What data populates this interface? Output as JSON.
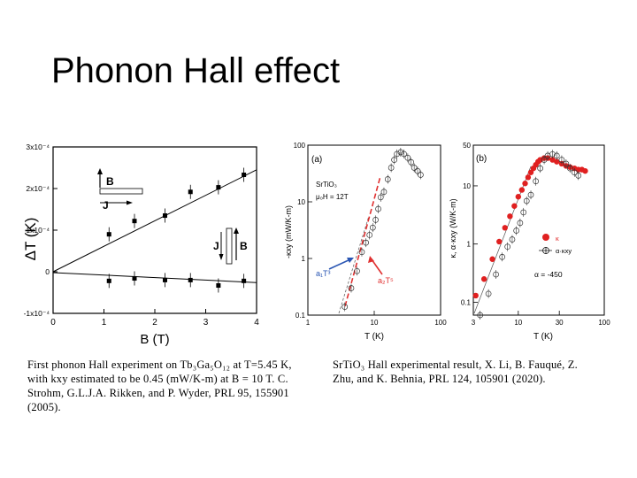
{
  "slide": {
    "title": "Phonon Hall effect"
  },
  "chart_data": [
    {
      "type": "scatter",
      "xlabel": "B  (T)",
      "ylabel": "ΔT  (K)",
      "xlim": [
        0,
        4
      ],
      "ylim": [
        -0.0001,
        0.0003
      ],
      "xticks": [
        "0",
        "1",
        "2",
        "3",
        "4"
      ],
      "yticks": [
        "-1x10⁻⁴",
        "0",
        "1x10⁻⁴",
        "2x10⁻⁴",
        "3x10⁻⁴"
      ],
      "series": [
        {
          "values_x": [
            1.1,
            1.6,
            2.2,
            2.7,
            3.25,
            3.75
          ],
          "values_y": [
            9e-05,
            0.000122,
            0.000135,
            0.000192,
            0.000203,
            0.000233
          ]
        },
        {
          "values_x": [
            1.1,
            1.6,
            2.2,
            2.7,
            3.25,
            3.75
          ],
          "values_y": [
            -2.2e-05,
            -1.6e-05,
            -2e-05,
            -2e-05,
            -3.3e-05,
            -2.2e-05
          ]
        }
      ],
      "fit_lines": [
        {
          "y_at_0": 0.0,
          "y_at_4": 0.000245
        },
        {
          "y_at_0": -2e-06,
          "y_at_4": -2.6e-05
        }
      ],
      "inset_labels": {
        "b_label": "B",
        "j_label": "J"
      }
    },
    {
      "type": "scatter",
      "panel_label": "(a)",
      "xlabel": "T (K)",
      "ylabel": "-κxy (mW/K-m)",
      "xscale": "log",
      "yscale": "log",
      "xlim": [
        1,
        100
      ],
      "ylim": [
        0.1,
        100
      ],
      "xticks": [
        "1",
        "10",
        "100"
      ],
      "yticks": [
        "0.1",
        "1",
        "10",
        "100"
      ],
      "legend": {
        "line1": "SrTiO₃",
        "line2": "μ₀H = 12T",
        "annot_left": "a₁T³",
        "annot_right": "a₂T⁵"
      },
      "series": [
        {
          "x": [
            3.6,
            4.5,
            5.5,
            6.5,
            7.5,
            8.5,
            9.5,
            10.5,
            11.5,
            12.5,
            14,
            16,
            18,
            20,
            22,
            25,
            28,
            32,
            36,
            40,
            45,
            50
          ],
          "y": [
            0.14,
            0.3,
            0.6,
            1.3,
            1.9,
            2.6,
            3.5,
            4.8,
            7.5,
            12,
            15,
            25,
            40,
            55,
            70,
            75,
            70,
            60,
            50,
            40,
            35,
            30
          ]
        }
      ]
    },
    {
      "type": "scatter",
      "panel_label": "(b)",
      "xlabel": "T (K)",
      "ylabel": "κ, α·κxy (W/K-m)",
      "xscale": "log",
      "yscale": "log",
      "xlim": [
        3,
        100
      ],
      "ylim": [
        0.06,
        50
      ],
      "xticks": [
        "3",
        "10",
        "30",
        "100"
      ],
      "yticks": [
        "0.1",
        "1",
        "10",
        "50"
      ],
      "legend": {
        "kappa": "κ",
        "alpha_kxy": "α·κxy",
        "alpha": "α = -450"
      },
      "series": [
        {
          "name": "κ",
          "x": [
            3.2,
            4,
            5,
            6,
            7,
            8,
            9,
            10,
            11,
            12,
            13,
            14,
            15,
            16,
            17,
            18,
            20,
            22,
            25,
            28,
            32,
            36,
            40,
            45,
            50,
            55,
            60
          ],
          "y": [
            0.13,
            0.25,
            0.55,
            1.1,
            1.9,
            3,
            4.5,
            6.5,
            8.5,
            11,
            14,
            17,
            20,
            23,
            26,
            28,
            30,
            30,
            28,
            26,
            24,
            22,
            21,
            20,
            19,
            19,
            18
          ]
        },
        {
          "name": "α·κxy",
          "x": [
            3.6,
            4.5,
            5.5,
            6.5,
            7.5,
            8.5,
            9.5,
            10.5,
            11.5,
            12.5,
            14,
            16,
            18,
            20,
            22,
            25,
            28,
            32,
            36,
            40,
            45,
            50
          ],
          "y": [
            0.06,
            0.14,
            0.3,
            0.6,
            0.9,
            1.2,
            1.7,
            2.3,
            3.5,
            5.5,
            7,
            12,
            20,
            28,
            33,
            35,
            33,
            28,
            24,
            20,
            17,
            15
          ]
        }
      ]
    }
  ],
  "captions": {
    "left": "First phonon Hall experiment on Tb₃Ga₅O₁₂ at T=5.45 K, with kxy estimated to be 0.45 (mW/K-m) at B = 10 T.  C. Strohm, G.L.J.A. Rikken, and P. Wyder, PRL 95, 155901 (2005).",
    "right": "SrTiO₃ Hall experimental result, X. Li, B. Fauqué, Z. Zhu, and K. Behnia, PRL 124, 105901 (2020)."
  }
}
